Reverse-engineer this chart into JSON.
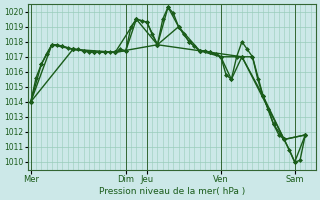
{
  "background_color": "#cce8e8",
  "grid_color": "#99ccbb",
  "line_color": "#1a5c1a",
  "title": "Pression niveau de la mer( hPa )",
  "ylim": [
    1009.5,
    1020.5
  ],
  "yticks": [
    1010,
    1011,
    1012,
    1013,
    1014,
    1015,
    1016,
    1017,
    1018,
    1019,
    1020
  ],
  "day_labels": [
    "Mer",
    "Dim",
    "Jeu",
    "Ven",
    "Sam"
  ],
  "day_positions": [
    0,
    9,
    11,
    18,
    25
  ],
  "xlim": [
    -0.3,
    27
  ],
  "series": [
    {
      "x": [
        0,
        0.5,
        1,
        1.5,
        2,
        2.5,
        3,
        3.5,
        4,
        4.5,
        5,
        5.5,
        6,
        6.5,
        7,
        7.5,
        8,
        8.5,
        9,
        9.5,
        10,
        10.5,
        11,
        11.5,
        12,
        12.5,
        13,
        13.5,
        14,
        14.5,
        15,
        15.5,
        16,
        16.5,
        17,
        17.5,
        18,
        18.5,
        19,
        19.5,
        20,
        20.5,
        21,
        21.5,
        22,
        22.5,
        23,
        23.5,
        24,
        24.5,
        25,
        25.5,
        26
      ],
      "y": [
        1014.0,
        1015.6,
        1016.5,
        1017.2,
        1017.8,
        1017.8,
        1017.7,
        1017.6,
        1017.5,
        1017.5,
        1017.4,
        1017.3,
        1017.3,
        1017.3,
        1017.3,
        1017.3,
        1017.3,
        1017.5,
        1017.4,
        1019.0,
        1019.5,
        1019.4,
        1019.3,
        1018.5,
        1017.8,
        1019.5,
        1020.3,
        1019.9,
        1019.0,
        1018.5,
        1018.0,
        1017.7,
        1017.4,
        1017.4,
        1017.3,
        1017.2,
        1017.0,
        1015.8,
        1015.5,
        1017.0,
        1018.0,
        1017.5,
        1017.0,
        1015.5,
        1014.4,
        1013.5,
        1012.5,
        1011.8,
        1011.5,
        1010.8,
        1010.0,
        1010.1,
        1011.8
      ]
    },
    {
      "x": [
        0,
        1,
        2,
        3,
        4,
        5,
        6,
        7,
        8,
        9,
        10,
        11,
        12,
        13,
        14,
        15,
        16,
        17,
        18,
        19,
        20,
        21,
        22,
        23,
        24,
        25,
        26
      ],
      "y": [
        1014.0,
        1016.5,
        1017.8,
        1017.7,
        1017.5,
        1017.4,
        1017.3,
        1017.3,
        1017.3,
        1017.4,
        1019.5,
        1019.3,
        1017.8,
        1020.3,
        1019.0,
        1018.0,
        1017.4,
        1017.3,
        1017.0,
        1015.5,
        1017.0,
        1017.0,
        1014.4,
        1012.5,
        1011.5,
        1010.0,
        1011.8
      ]
    },
    {
      "x": [
        0,
        2,
        4,
        6,
        8,
        10,
        12,
        14,
        16,
        18,
        20,
        22,
        24,
        26
      ],
      "y": [
        1014.0,
        1017.8,
        1017.5,
        1017.3,
        1017.3,
        1019.5,
        1017.8,
        1019.0,
        1017.4,
        1017.0,
        1017.0,
        1014.4,
        1011.5,
        1011.8
      ]
    },
    {
      "x": [
        0,
        4,
        8,
        12,
        16,
        20,
        24,
        26
      ],
      "y": [
        1014.0,
        1017.5,
        1017.3,
        1017.8,
        1017.4,
        1017.0,
        1011.5,
        1011.8
      ]
    }
  ]
}
